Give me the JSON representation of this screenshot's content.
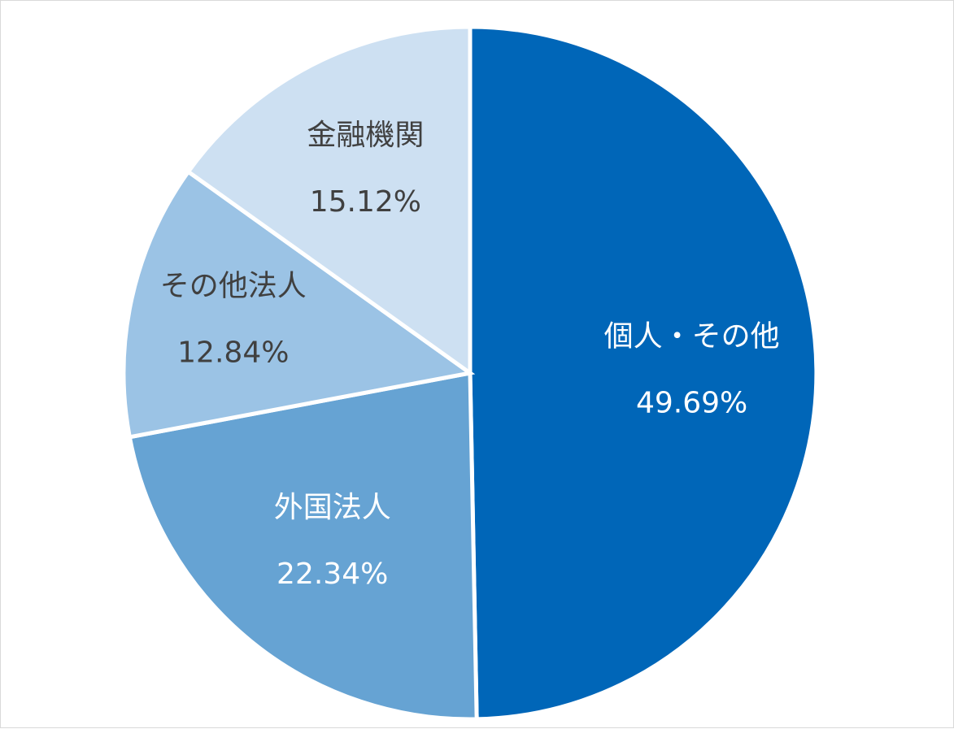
{
  "chart_data": {
    "type": "pie",
    "start_angle_deg": 0,
    "direction": "clockwise",
    "slices": [
      {
        "name": "個人・その他",
        "value": 49.69,
        "percent_label": "49.69%",
        "color": "#0066b8",
        "label_color": "#ffffff"
      },
      {
        "name": "外国法人",
        "value": 22.34,
        "percent_label": "22.34%",
        "color": "#66a3d3",
        "label_color": "#ffffff"
      },
      {
        "name": "その他法人",
        "value": 12.84,
        "percent_label": "12.84%",
        "color": "#9bc3e5",
        "label_color": "#404040"
      },
      {
        "name": "金融機関",
        "value": 15.12,
        "percent_label": "15.12%",
        "color": "#cde0f2",
        "label_color": "#404040"
      }
    ]
  }
}
